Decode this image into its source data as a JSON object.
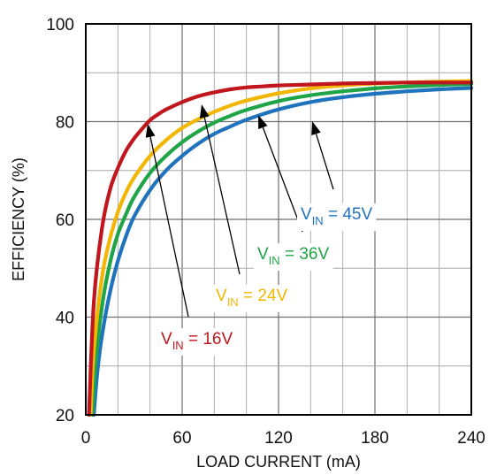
{
  "chart_data": {
    "type": "line",
    "xlabel": "LOAD CURRENT (mA)",
    "ylabel": "EFFICIENCY (%)",
    "xlim": [
      0,
      240
    ],
    "ylim": [
      20,
      100
    ],
    "x_ticks": [
      "0",
      "60",
      "120",
      "180",
      "240"
    ],
    "y_ticks": [
      "20",
      "40",
      "60",
      "80",
      "100"
    ],
    "grid": true,
    "series": [
      {
        "name": "VIN = 16V",
        "label_main": "V",
        "label_sub": "IN",
        "label_rest": " = 16V",
        "color": "#c0161d",
        "x": [
          2,
          5,
          10,
          15,
          20,
          25,
          30,
          35,
          40,
          45,
          50,
          60,
          70,
          80,
          90,
          100,
          110,
          120,
          140,
          160,
          180,
          200,
          220,
          240
        ],
        "y": [
          20,
          43,
          58,
          66,
          70.5,
          74,
          76.5,
          78.5,
          80.3,
          81.5,
          82.5,
          84,
          85.2,
          86,
          86.6,
          87,
          87.2,
          87.4,
          87.6,
          87.8,
          87.9,
          88,
          88,
          88
        ]
      },
      {
        "name": "VIN = 24V",
        "label_main": "V",
        "label_sub": "IN",
        "label_rest": " = 24V",
        "color": "#f2b705",
        "x": [
          3,
          5,
          10,
          15,
          20,
          25,
          30,
          40,
          50,
          60,
          70,
          80,
          90,
          100,
          120,
          140,
          160,
          180,
          200,
          220,
          240
        ],
        "y": [
          20,
          33,
          48,
          56,
          61.5,
          65.5,
          68.5,
          73,
          76.2,
          78.7,
          80.5,
          82,
          83.3,
          84.3,
          85.8,
          86.8,
          87.4,
          87.8,
          88,
          88.2,
          88.3
        ]
      },
      {
        "name": "VIN = 36V",
        "label_main": "V",
        "label_sub": "IN",
        "label_rest": " = 36V",
        "color": "#1fa548",
        "x": [
          4,
          6,
          10,
          15,
          20,
          25,
          30,
          40,
          50,
          60,
          70,
          80,
          90,
          100,
          120,
          140,
          160,
          180,
          200,
          220,
          240
        ],
        "y": [
          20,
          30,
          42,
          51,
          57,
          61,
          64.5,
          69.5,
          73,
          75.8,
          78,
          79.8,
          81.2,
          82.4,
          84.2,
          85.4,
          86.2,
          86.8,
          87.2,
          87.5,
          87.7
        ]
      },
      {
        "name": "VIN = 45V",
        "label_main": "V",
        "label_sub": "IN",
        "label_rest": " = 45V",
        "color": "#1f73bd",
        "x": [
          5,
          7,
          10,
          15,
          20,
          25,
          30,
          40,
          50,
          60,
          70,
          80,
          90,
          100,
          120,
          140,
          160,
          180,
          200,
          220,
          240
        ],
        "y": [
          20,
          28,
          36,
          45,
          51.5,
          56.5,
          60.5,
          66,
          70,
          73,
          75.5,
          77.5,
          79,
          80.4,
          82.5,
          84,
          85,
          85.7,
          86.2,
          86.6,
          86.9
        ]
      }
    ]
  }
}
